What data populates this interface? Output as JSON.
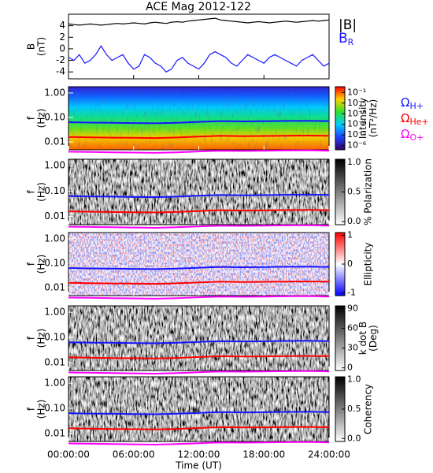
{
  "chart_data": [
    {
      "type": "line",
      "title": "ACE Mag 2012-122",
      "ylabel": [
        "B",
        "(nT)"
      ],
      "xlim": [
        0,
        24
      ],
      "ylim": [
        -5.2,
        6
      ],
      "yticks": [
        4,
        2,
        0,
        -2,
        -4
      ],
      "x": [
        0,
        0.5,
        1,
        1.5,
        2,
        2.5,
        3,
        3.5,
        4,
        4.5,
        5,
        5.5,
        6,
        6.5,
        7,
        7.5,
        8,
        8.5,
        9,
        9.5,
        10,
        10.5,
        11,
        11.5,
        12,
        12.5,
        13,
        13.5,
        14,
        14.5,
        15,
        15.5,
        16,
        16.5,
        17,
        17.5,
        18,
        18.5,
        19,
        19.5,
        20,
        20.5,
        21,
        21.5,
        22,
        22.5,
        23,
        23.5,
        24
      ],
      "series": [
        {
          "name": "|B|",
          "color": "#000000",
          "values": [
            4.3,
            4.2,
            4.1,
            4.2,
            4.3,
            4.2,
            4.1,
            4.2,
            4.3,
            4.4,
            4.3,
            4.4,
            4.5,
            4.4,
            4.3,
            4.5,
            4.6,
            4.5,
            4.4,
            4.6,
            4.7,
            4.6,
            4.8,
            4.9,
            5.0,
            5.1,
            5.2,
            5.3,
            5.0,
            4.9,
            4.8,
            4.7,
            4.6,
            4.5,
            4.6,
            4.7,
            4.6,
            4.5,
            4.6,
            4.7,
            4.8,
            4.7,
            4.6,
            4.7,
            4.8,
            4.9,
            4.8,
            4.9,
            5.0
          ]
        },
        {
          "name": "B",
          "name_sub": "R",
          "color": "#1515ff",
          "values": [
            -1.5,
            -2,
            -1,
            -2.5,
            -2,
            -1,
            0.5,
            -1,
            -2,
            -1.5,
            -1,
            -2.5,
            -3.5,
            -3,
            -1,
            -1.5,
            -2.5,
            -3,
            -4,
            -3.5,
            -2,
            -1.5,
            -2.5,
            -3,
            -3.5,
            -2.5,
            -1,
            -0.5,
            -1,
            -1.5,
            -2.5,
            -3,
            -2,
            -1,
            -1.5,
            -2,
            -2.5,
            -1.5,
            -1,
            -1.5,
            -2,
            -2.5,
            -3,
            -2,
            -1.5,
            -1,
            -2,
            -3,
            -2.5
          ]
        }
      ]
    },
    {
      "type": "spectrogram",
      "colormap": "rainbow",
      "log_y": true,
      "legend": true,
      "ylabel": [
        "f",
        "(Hz)"
      ],
      "xlim": [
        0,
        24
      ],
      "ylim": [
        0.0048,
        1.8
      ],
      "yticks": [
        {
          "value": 1,
          "label": "1.00"
        },
        {
          "value": 0.1,
          "label": "0.10"
        },
        {
          "value": 0.01,
          "label": "0.01"
        }
      ],
      "clabel": [
        "Intensity",
        "(nT²/Hz)"
      ],
      "log_c": true,
      "clim": [
        4e-07,
        0.35
      ],
      "cticks": [
        {
          "value": 0.1,
          "label": "10⁻¹"
        },
        {
          "value": 0.01,
          "label": "10⁻²"
        },
        {
          "value": 0.001,
          "label": "10⁻³"
        },
        {
          "value": 0.0001,
          "label": "10⁻⁴"
        },
        {
          "value": 1e-05,
          "label": "10⁻⁵"
        },
        {
          "value": 1e-06,
          "label": "10⁻⁶"
        }
      ],
      "x": [
        0,
        2,
        4,
        6,
        8,
        10,
        12,
        14,
        16,
        18,
        20,
        22,
        24
      ],
      "series": [
        {
          "name": "Ω",
          "name_sub": "H+",
          "color": "#1515ff",
          "values": [
            0.064,
            0.062,
            0.061,
            0.059,
            0.058,
            0.061,
            0.066,
            0.071,
            0.069,
            0.07,
            0.072,
            0.073,
            0.071
          ]
        },
        {
          "name": "Ω",
          "name_sub": "He+",
          "color": "#ff0000",
          "values": [
            0.016,
            0.0155,
            0.015,
            0.0148,
            0.0145,
            0.0152,
            0.0165,
            0.0178,
            0.0172,
            0.0175,
            0.018,
            0.0182,
            0.0178
          ]
        },
        {
          "name": "Ω",
          "name_sub": "O+",
          "color": "#ff00ff",
          "values": [
            0.004,
            0.0039,
            0.0038,
            0.0037,
            0.0036,
            0.0038,
            0.0041,
            0.0044,
            0.0043,
            0.0044,
            0.0045,
            0.0046,
            0.0044
          ]
        }
      ]
    },
    {
      "type": "spectrogram",
      "colormap": "gray",
      "log_y": true,
      "legend": false,
      "ylabel": [
        "f",
        "(Hz)"
      ],
      "xlim": [
        0,
        24
      ],
      "ylim": [
        0.0048,
        1.8
      ],
      "yticks": [
        {
          "value": 1,
          "label": "1.00"
        },
        {
          "value": 0.1,
          "label": "0.10"
        },
        {
          "value": 0.01,
          "label": "0.01"
        }
      ],
      "clabel": [
        "% Polarization"
      ],
      "clim": [
        -0.05,
        1.05
      ],
      "cticks": [
        {
          "value": 0,
          "label": "0.0"
        },
        0.5,
        {
          "value": 1,
          "label": "1.0"
        }
      ],
      "x": [
        0,
        2,
        4,
        6,
        8,
        10,
        12,
        14,
        16,
        18,
        20,
        22,
        24
      ],
      "series": [
        {
          "color": "#1515ff",
          "values": [
            0.064,
            0.062,
            0.061,
            0.059,
            0.058,
            0.061,
            0.066,
            0.071,
            0.069,
            0.07,
            0.072,
            0.073,
            0.071
          ]
        },
        {
          "color": "#ff0000",
          "values": [
            0.016,
            0.0155,
            0.015,
            0.0148,
            0.0145,
            0.0152,
            0.0165,
            0.0178,
            0.0172,
            0.0175,
            0.018,
            0.0182,
            0.0178
          ]
        },
        {
          "color": "#ff00ff",
          "values": [
            0.004,
            0.0039,
            0.0038,
            0.0037,
            0.0036,
            0.0038,
            0.0041,
            0.0044,
            0.0043,
            0.0044,
            0.0045,
            0.0046,
            0.0044
          ]
        }
      ]
    },
    {
      "type": "spectrogram",
      "colormap": "bwr",
      "log_y": true,
      "legend": false,
      "ylabel": [
        "f",
        "(Hz)"
      ],
      "xlim": [
        0,
        24
      ],
      "ylim": [
        0.0048,
        1.8
      ],
      "yticks": [
        {
          "value": 1,
          "label": "1.00"
        },
        {
          "value": 0.1,
          "label": "0.10"
        },
        {
          "value": 0.01,
          "label": "0.01"
        }
      ],
      "clabel": [
        "Ellipticity"
      ],
      "clim": [
        -1.1,
        1.1
      ],
      "cticks": [
        1,
        0,
        -1
      ],
      "x": [
        0,
        2,
        4,
        6,
        8,
        10,
        12,
        14,
        16,
        18,
        20,
        22,
        24
      ],
      "series": [
        {
          "color": "#1515ff",
          "values": [
            0.064,
            0.062,
            0.061,
            0.059,
            0.058,
            0.061,
            0.066,
            0.071,
            0.069,
            0.07,
            0.072,
            0.073,
            0.071
          ]
        },
        {
          "color": "#ff0000",
          "values": [
            0.016,
            0.0155,
            0.015,
            0.0148,
            0.0145,
            0.0152,
            0.0165,
            0.0178,
            0.0172,
            0.0175,
            0.018,
            0.0182,
            0.0178
          ]
        },
        {
          "color": "#ff00ff",
          "values": [
            0.004,
            0.0039,
            0.0038,
            0.0037,
            0.0036,
            0.0038,
            0.0041,
            0.0044,
            0.0043,
            0.0044,
            0.0045,
            0.0046,
            0.0044
          ]
        }
      ]
    },
    {
      "type": "spectrogram",
      "colormap": "gray",
      "log_y": true,
      "legend": false,
      "ylabel": [
        "f",
        "(Hz)"
      ],
      "xlim": [
        0,
        24
      ],
      "ylim": [
        0.0048,
        1.8
      ],
      "yticks": [
        {
          "value": 1,
          "label": "1.00"
        },
        {
          "value": 0.1,
          "label": "0.10"
        },
        {
          "value": 0.01,
          "label": "0.01"
        }
      ],
      "clabel": [
        "k dot B",
        "(Deg)"
      ],
      "clim": [
        -4,
        94
      ],
      "cticks": [
        90,
        60,
        30,
        0
      ],
      "x": [
        0,
        2,
        4,
        6,
        8,
        10,
        12,
        14,
        16,
        18,
        20,
        22,
        24
      ],
      "series": [
        {
          "color": "#1515ff",
          "values": [
            0.064,
            0.062,
            0.061,
            0.059,
            0.058,
            0.061,
            0.066,
            0.071,
            0.069,
            0.07,
            0.072,
            0.073,
            0.071
          ]
        },
        {
          "color": "#ff0000",
          "values": [
            0.016,
            0.0155,
            0.015,
            0.0148,
            0.0145,
            0.0152,
            0.0165,
            0.0178,
            0.0172,
            0.0175,
            0.018,
            0.0182,
            0.0178
          ]
        },
        {
          "color": "#ff00ff",
          "values": [
            0.004,
            0.0039,
            0.0038,
            0.0037,
            0.0036,
            0.0038,
            0.0041,
            0.0044,
            0.0043,
            0.0044,
            0.0045,
            0.0046,
            0.0044
          ]
        }
      ]
    },
    {
      "type": "spectrogram",
      "colormap": "gray",
      "log_y": true,
      "legend": false,
      "ylabel": [
        "f",
        "(Hz)"
      ],
      "xlim": [
        0,
        24
      ],
      "ylim": [
        0.0048,
        1.8
      ],
      "yticks": [
        {
          "value": 1,
          "label": "1.00"
        },
        {
          "value": 0.1,
          "label": "0.10"
        },
        {
          "value": 0.01,
          "label": "0.01"
        }
      ],
      "clabel": [
        "Coherency"
      ],
      "clim": [
        -0.05,
        1.05
      ],
      "cticks": [
        {
          "value": 1,
          "label": "1.0"
        },
        0.5,
        {
          "value": 0,
          "label": "0.0"
        }
      ],
      "xlabel": "Time (UT)",
      "xticks": [
        {
          "value": 0,
          "label": "00:00:00"
        },
        {
          "value": 6,
          "label": "06:00:00"
        },
        {
          "value": 12,
          "label": "12:00:00"
        },
        {
          "value": 18,
          "label": "18:00:00"
        },
        {
          "value": 24,
          "label": "24:00:00"
        }
      ],
      "x": [
        0,
        2,
        4,
        6,
        8,
        10,
        12,
        14,
        16,
        18,
        20,
        22,
        24
      ],
      "series": [
        {
          "color": "#1515ff",
          "values": [
            0.064,
            0.062,
            0.061,
            0.059,
            0.058,
            0.061,
            0.066,
            0.071,
            0.069,
            0.07,
            0.072,
            0.073,
            0.071
          ]
        },
        {
          "color": "#ff0000",
          "values": [
            0.016,
            0.0155,
            0.015,
            0.0148,
            0.0145,
            0.0152,
            0.0165,
            0.0178,
            0.0172,
            0.0175,
            0.018,
            0.0182,
            0.0178
          ]
        },
        {
          "color": "#ff00ff",
          "values": [
            0.004,
            0.0039,
            0.0038,
            0.0037,
            0.0036,
            0.0038,
            0.0041,
            0.0044,
            0.0043,
            0.0044,
            0.0045,
            0.0046,
            0.0044
          ]
        }
      ]
    }
  ]
}
